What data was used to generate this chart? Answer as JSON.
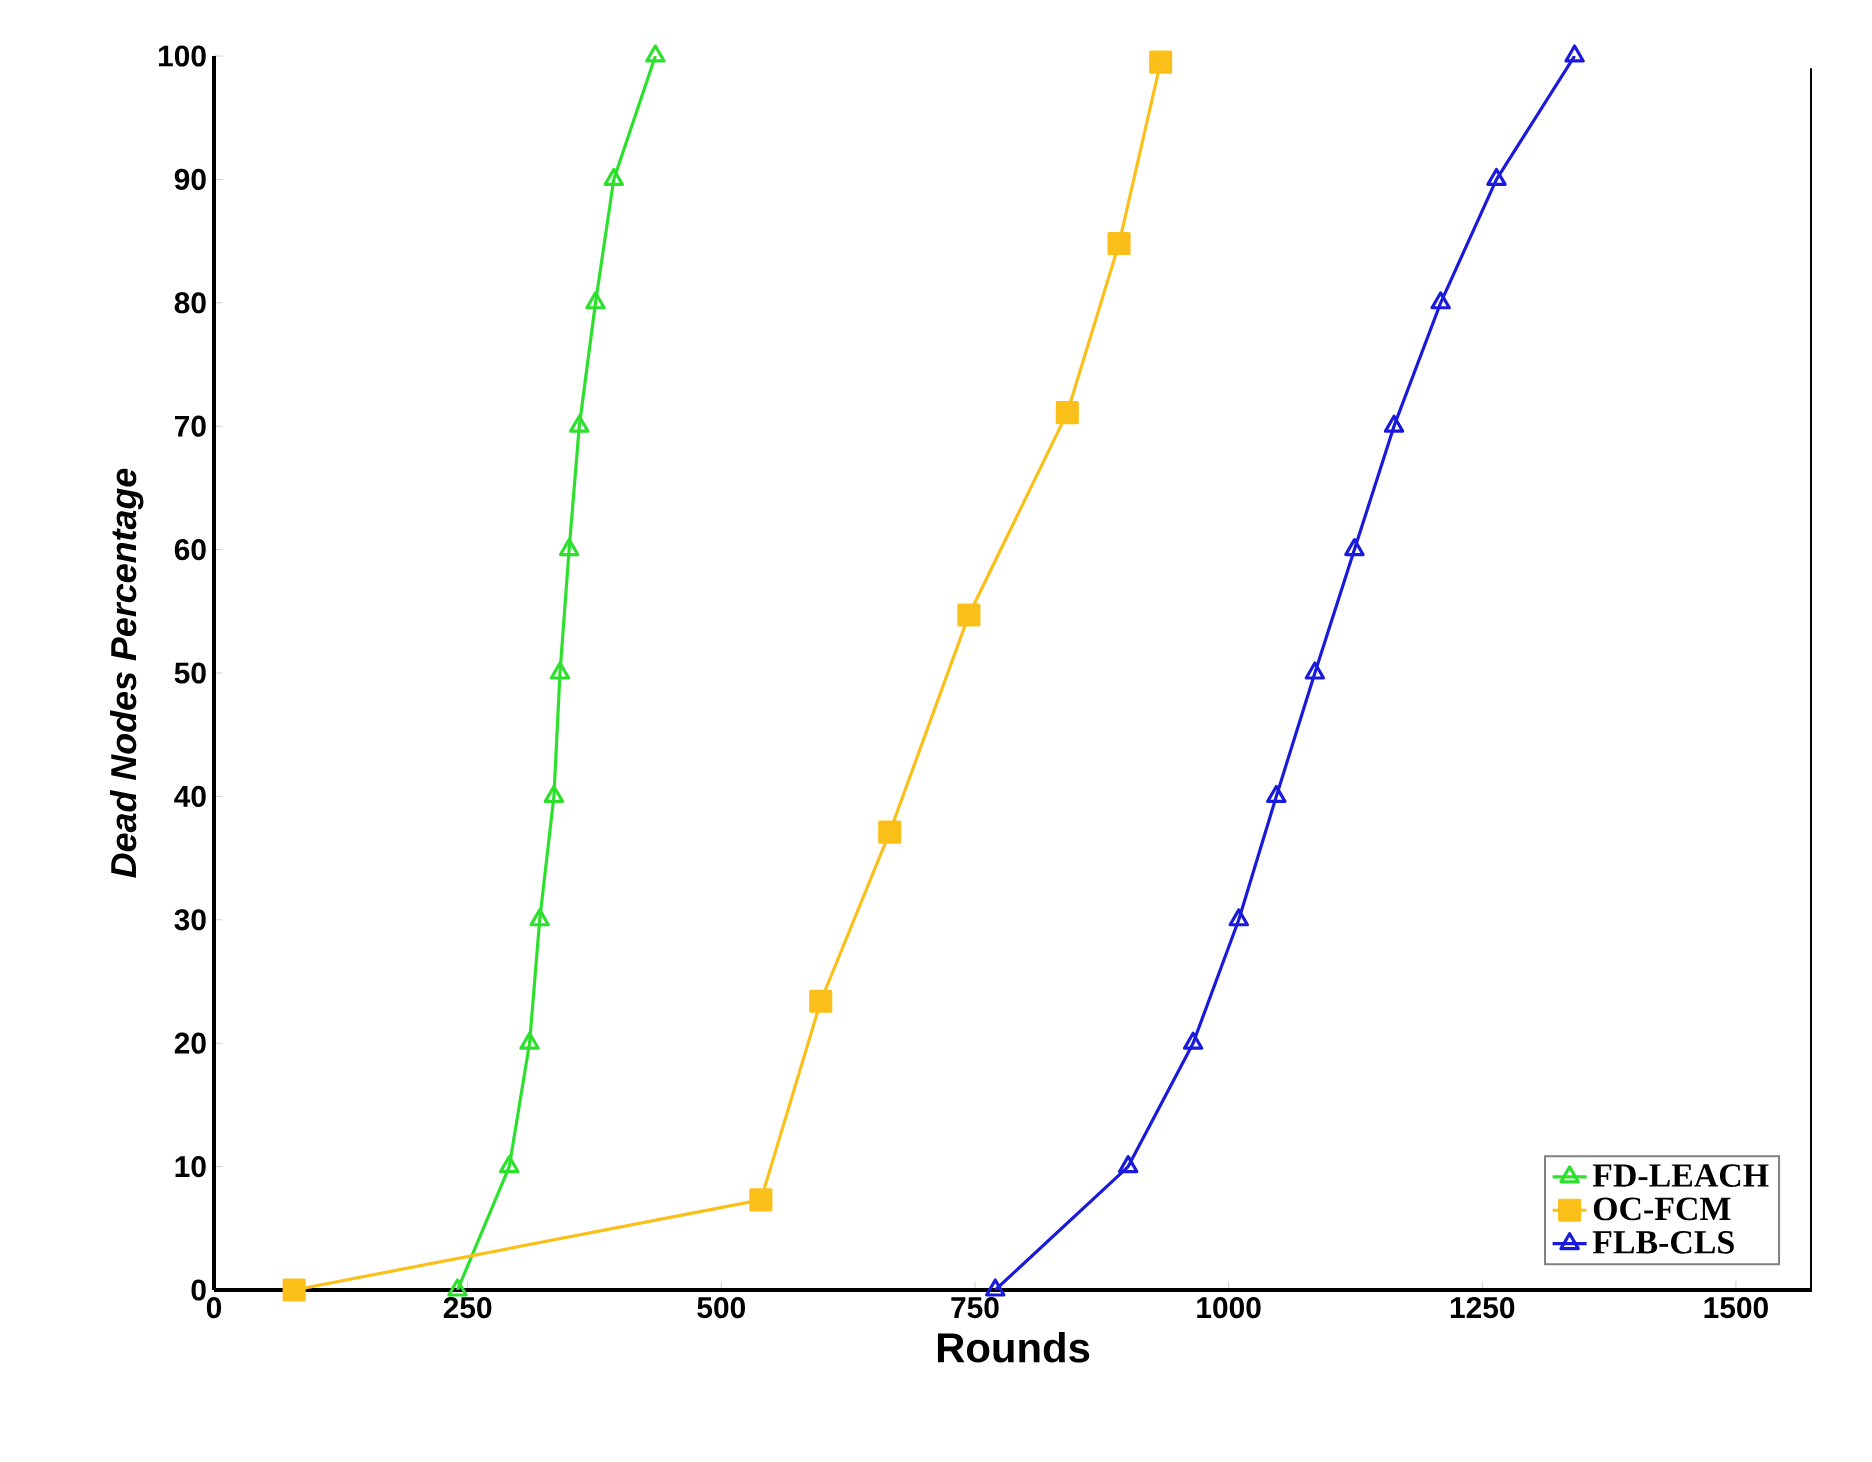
{
  "chart_data": {
    "type": "line",
    "xlabel": "Rounds",
    "ylabel": "Dead Nodes Percentage",
    "xlim": [
      0,
      1575
    ],
    "ylim": [
      0,
      100
    ],
    "xticks": [
      0,
      250,
      500,
      750,
      1000,
      1250,
      1500
    ],
    "yticks": [
      0,
      10,
      20,
      30,
      40,
      50,
      60,
      70,
      80,
      90,
      100
    ],
    "grid": false,
    "legend": "bottom right",
    "line_style": "solid",
    "series": [
      {
        "name": "FD-LEACH",
        "color": "#2ee02e",
        "marker": "triangle",
        "x": [
          240,
          291,
          311,
          321,
          335,
          341,
          350,
          360,
          376,
          394,
          435
        ],
        "values": [
          0,
          10,
          20,
          30,
          40,
          50,
          60,
          70,
          80,
          90,
          100
        ]
      },
      {
        "name": "OC-FCM",
        "color": "#fbbf1a",
        "marker": "square",
        "x": [
          79,
          539,
          598,
          666,
          744,
          841,
          892,
          933
        ],
        "values": [
          0,
          7.3,
          23.4,
          37.1,
          54.7,
          71.1,
          84.8,
          99.5
        ]
      },
      {
        "name": "FLB-CLS",
        "color": "#1a1adb",
        "marker": "triangle",
        "x": [
          770,
          901,
          965,
          1010,
          1047,
          1085,
          1124,
          1163,
          1209,
          1264,
          1341
        ],
        "values": [
          0,
          10,
          20,
          30,
          40,
          50,
          60,
          70,
          80,
          90,
          100
        ]
      }
    ]
  }
}
